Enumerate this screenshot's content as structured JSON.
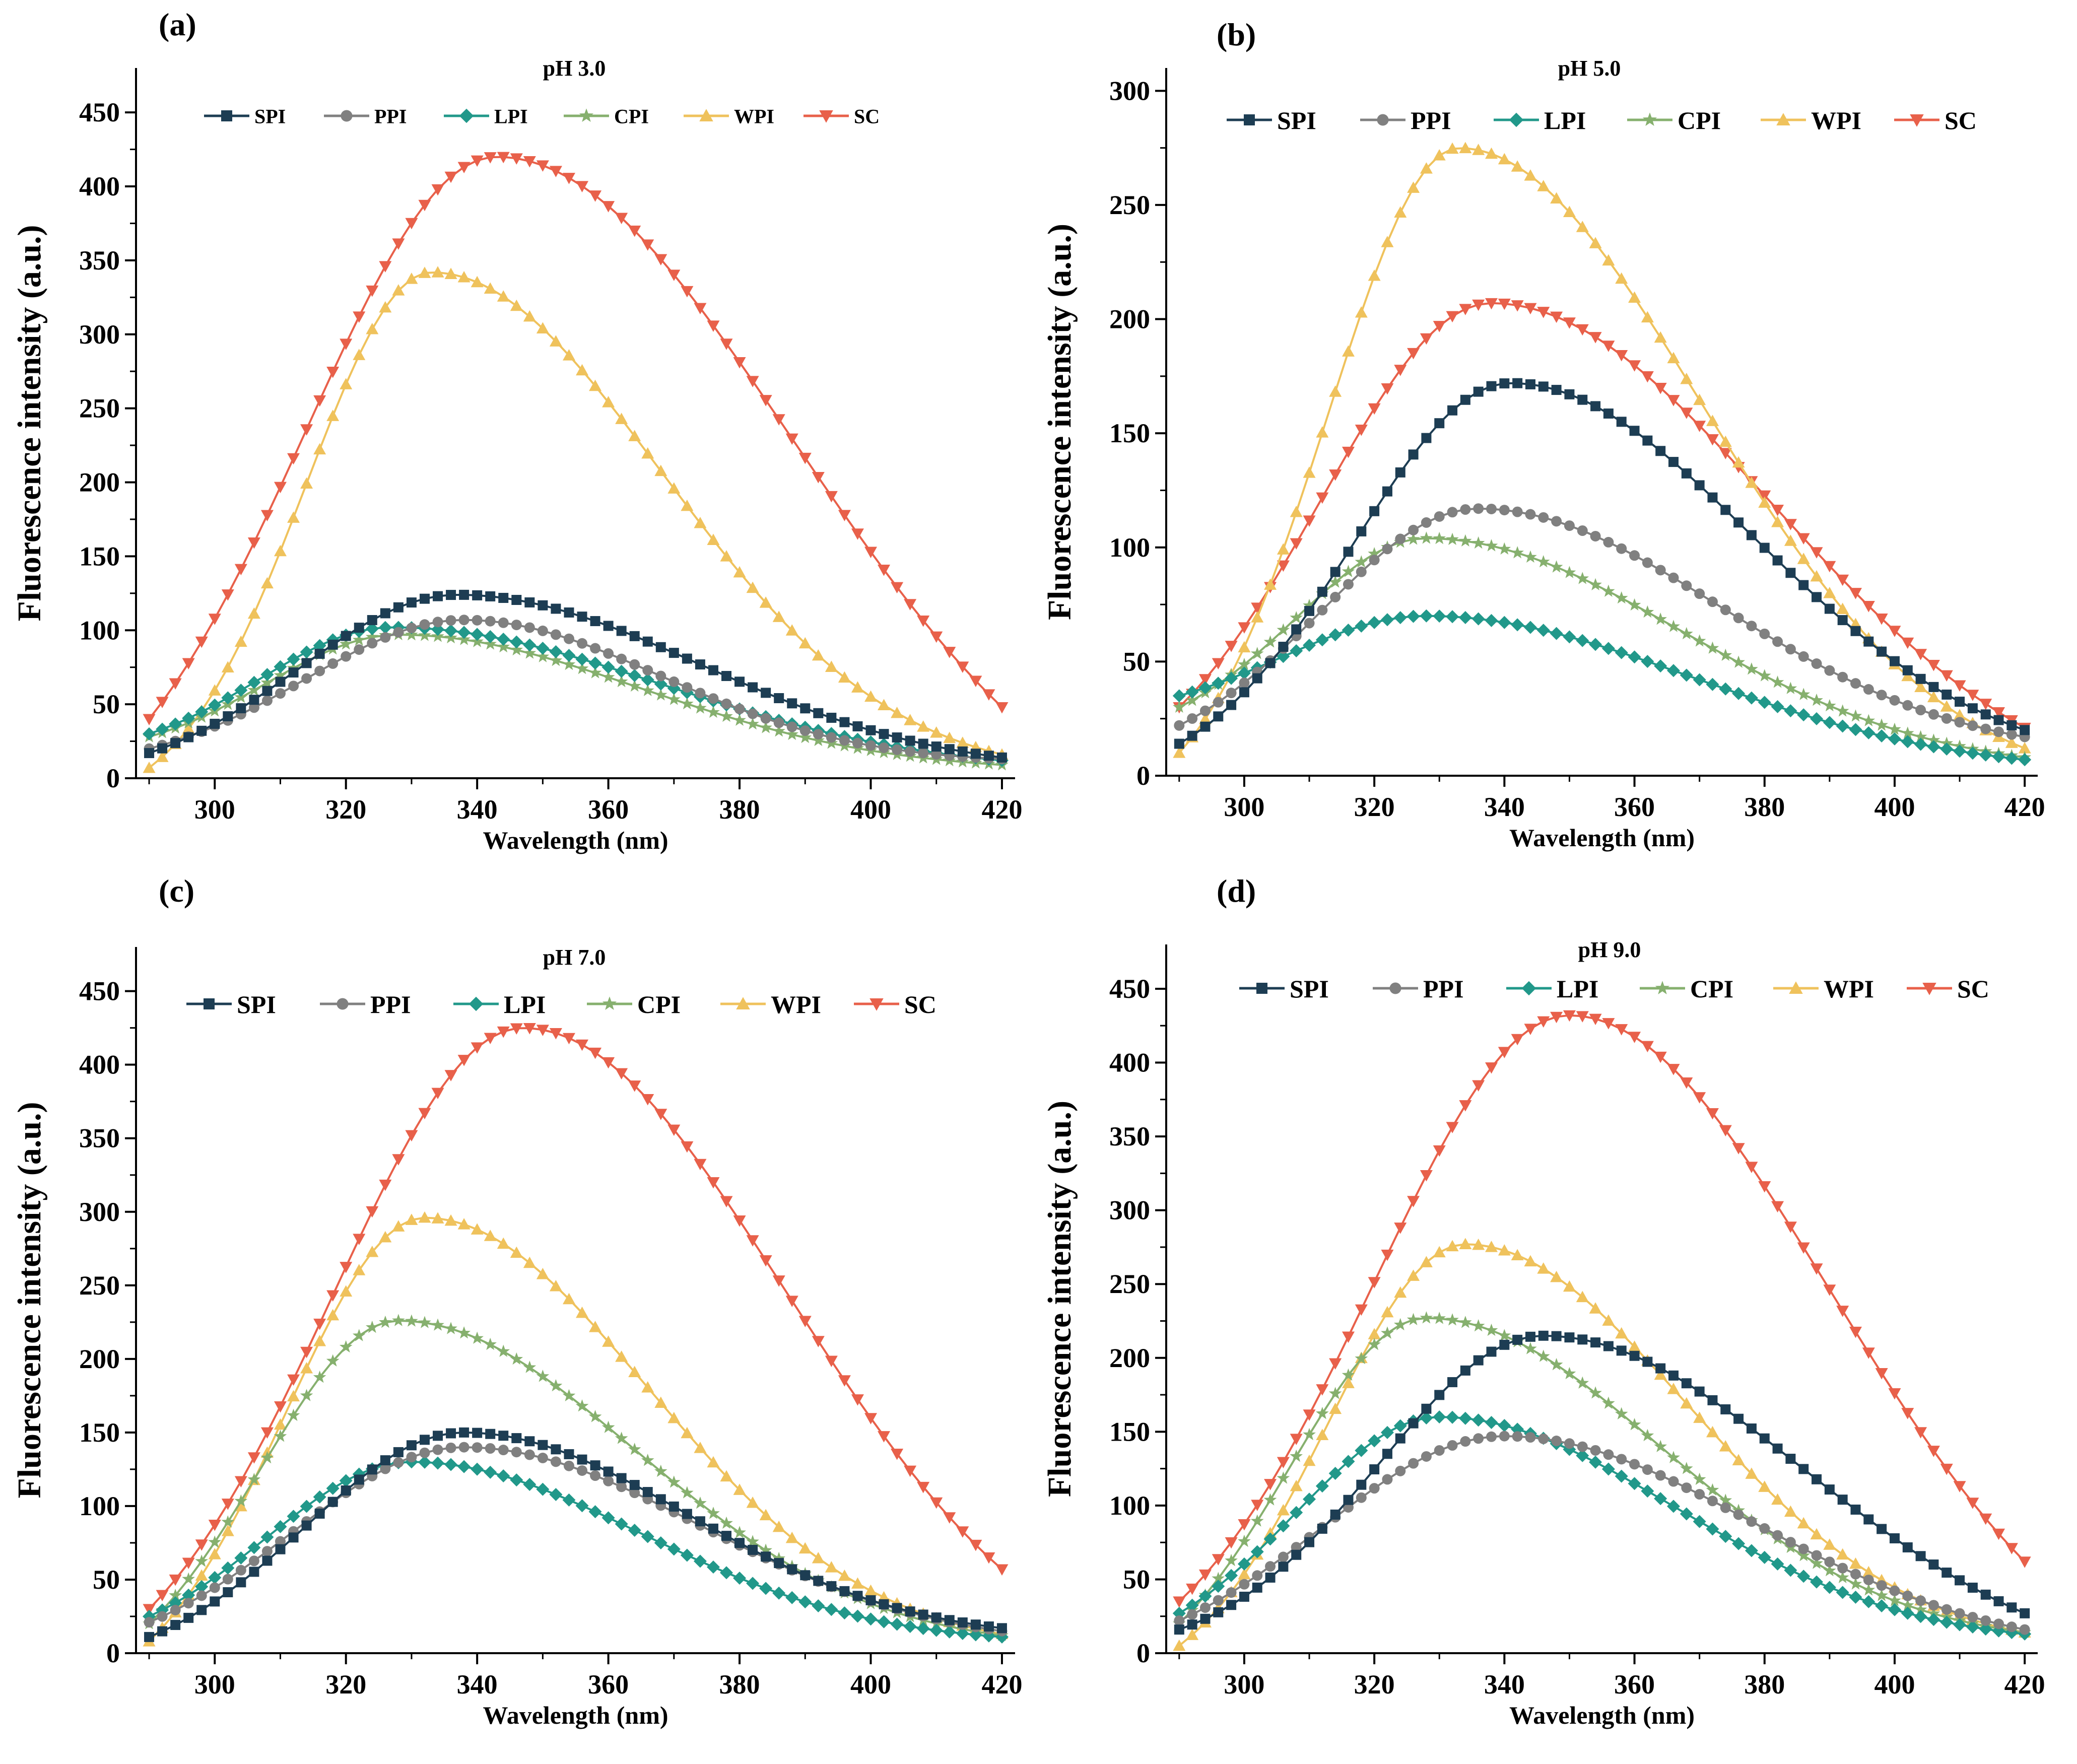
{
  "figure": {
    "x_grid": [
      290,
      292,
      294,
      296,
      298,
      300,
      302,
      304,
      306,
      308,
      310,
      312,
      314,
      316,
      318,
      320,
      322,
      324,
      326,
      328,
      330,
      332,
      334,
      336,
      338,
      340,
      342,
      344,
      346,
      348,
      350,
      352,
      354,
      356,
      358,
      360,
      362,
      364,
      366,
      368,
      370,
      372,
      374,
      376,
      378,
      380,
      382,
      384,
      386,
      388,
      390,
      392,
      394,
      396,
      398,
      400,
      402,
      404,
      406,
      408,
      410,
      412,
      414,
      416,
      418,
      420
    ],
    "colors": {
      "SPI": "#1d3d53",
      "PPI": "#808080",
      "LPI": "#21988a",
      "CPI": "#86b06e",
      "WPI": "#efc25c",
      "SC": "#e8604a"
    },
    "markers": {
      "SPI": "square",
      "PPI": "circle",
      "LPI": "diamond",
      "CPI": "star",
      "WPI": "triangle-up",
      "SC": "triangle-down"
    }
  },
  "chart_data": [
    {
      "type": "line",
      "panel_label": "(a)",
      "title": "pH 3.0",
      "xlabel": "Wavelength (nm)",
      "ylabel": "Fluorescence intensity (a.u.)",
      "xlim": [
        288,
        422
      ],
      "ylim": [
        0,
        480
      ],
      "xticks": [
        300,
        320,
        340,
        360,
        380,
        400,
        420
      ],
      "yticks": [
        0,
        50,
        100,
        150,
        200,
        250,
        300,
        350,
        400,
        450
      ],
      "legend": [
        "SPI",
        "PPI",
        "LPI",
        "CPI",
        "WPI",
        "SC"
      ],
      "series": [
        {
          "name": "SPI",
          "peak_x": 337,
          "peak_y": 124,
          "left_width": 24,
          "right_width": 37,
          "start_y": 17,
          "end_y": 14
        },
        {
          "name": "PPI",
          "peak_x": 338,
          "peak_y": 107,
          "left_width": 24,
          "right_width": 30,
          "start_y": 20,
          "end_y": 13
        },
        {
          "name": "LPI",
          "peak_x": 327,
          "peak_y": 102,
          "left_width": 20,
          "right_width": 41,
          "start_y": 30,
          "end_y": 12
        },
        {
          "name": "CPI",
          "peak_x": 328,
          "peak_y": 97,
          "left_width": 20,
          "right_width": 37,
          "start_y": 28,
          "end_y": 9
        },
        {
          "name": "WPI",
          "peak_x": 333,
          "peak_y": 342,
          "left_width": 19,
          "right_width": 35,
          "start_y": 7,
          "end_y": 16
        },
        {
          "name": "SC",
          "peak_x": 343,
          "peak_y": 420,
          "left_width": 29,
          "right_width": 45,
          "start_y": 40,
          "end_y": 48
        }
      ]
    },
    {
      "type": "line",
      "panel_label": "(b)",
      "title": "pH 5.0",
      "xlabel": "Wavelength (nm)",
      "ylabel": "Fluorescence intensity (a.u.)",
      "xlim": [
        288,
        422
      ],
      "ylim": [
        0,
        310
      ],
      "xticks": [
        300,
        320,
        340,
        360,
        380,
        400,
        420
      ],
      "yticks": [
        0,
        50,
        100,
        150,
        200,
        250,
        300
      ],
      "legend": [
        "SPI",
        "PPI",
        "LPI",
        "CPI",
        "WPI",
        "SC"
      ],
      "series": [
        {
          "name": "SPI",
          "peak_x": 341,
          "peak_y": 172,
          "left_width": 24,
          "right_width": 37,
          "start_y": 14,
          "end_y": 20
        },
        {
          "name": "PPI",
          "peak_x": 336,
          "peak_y": 117,
          "left_width": 24,
          "right_width": 37,
          "start_y": 22,
          "end_y": 17
        },
        {
          "name": "LPI",
          "peak_x": 328,
          "peak_y": 70,
          "left_width": 22,
          "right_width": 41,
          "start_y": 35,
          "end_y": 7
        },
        {
          "name": "CPI",
          "peak_x": 328,
          "peak_y": 104,
          "left_width": 20,
          "right_width": 39,
          "start_y": 30,
          "end_y": 8
        },
        {
          "name": "WPI",
          "peak_x": 333,
          "peak_y": 275,
          "left_width": 20,
          "right_width": 37,
          "start_y": 10,
          "end_y": 12
        },
        {
          "name": "SC",
          "peak_x": 338,
          "peak_y": 207,
          "left_width": 26,
          "right_width": 43,
          "start_y": 30,
          "end_y": 21
        }
      ]
    },
    {
      "type": "line",
      "panel_label": "(c)",
      "title": "pH 7.0",
      "xlabel": "Wavelength (nm)",
      "ylabel": "Fluorescence intensity (a.u.)",
      "xlim": [
        288,
        422
      ],
      "ylim": [
        0,
        480
      ],
      "xticks": [
        300,
        320,
        340,
        360,
        380,
        400,
        420
      ],
      "yticks": [
        0,
        50,
        100,
        150,
        200,
        250,
        300,
        350,
        400,
        450
      ],
      "legend": [
        "SPI",
        "PPI",
        "LPI",
        "CPI",
        "WPI",
        "SC"
      ],
      "series": [
        {
          "name": "SPI",
          "peak_x": 338,
          "peak_y": 150,
          "left_width": 24,
          "right_width": 34,
          "start_y": 11,
          "end_y": 17
        },
        {
          "name": "PPI",
          "peak_x": 338,
          "peak_y": 140,
          "left_width": 26,
          "right_width": 36,
          "start_y": 21,
          "end_y": 15
        },
        {
          "name": "LPI",
          "peak_x": 330,
          "peak_y": 130,
          "left_width": 22,
          "right_width": 35,
          "start_y": 25,
          "end_y": 11
        },
        {
          "name": "CPI",
          "peak_x": 328,
          "peak_y": 226,
          "left_width": 21,
          "right_width": 36,
          "start_y": 20,
          "end_y": 12
        },
        {
          "name": "WPI",
          "peak_x": 332,
          "peak_y": 296,
          "left_width": 21,
          "right_width": 34,
          "start_y": 8,
          "end_y": 13
        },
        {
          "name": "SC",
          "peak_x": 347,
          "peak_y": 425,
          "left_width": 29,
          "right_width": 40,
          "start_y": 30,
          "end_y": 57
        }
      ]
    },
    {
      "type": "line",
      "panel_label": "(d)",
      "title": "pH 9.0",
      "xlabel": "Wavelength (nm)",
      "ylabel": "Fluorescence intensity (a.u.)",
      "xlim": [
        288,
        422
      ],
      "ylim": [
        0,
        480
      ],
      "xticks": [
        300,
        320,
        340,
        360,
        380,
        400,
        420
      ],
      "yticks": [
        0,
        50,
        100,
        150,
        200,
        250,
        300,
        350,
        400,
        450
      ],
      "legend": [
        "SPI",
        "PPI",
        "LPI",
        "CPI",
        "WPI",
        "SC"
      ],
      "series": [
        {
          "name": "SPI",
          "peak_x": 346,
          "peak_y": 215,
          "left_width": 25,
          "right_width": 40,
          "start_y": 16,
          "end_y": 27
        },
        {
          "name": "PPI",
          "peak_x": 340,
          "peak_y": 147,
          "left_width": 28,
          "right_width": 38,
          "start_y": 22,
          "end_y": 16
        },
        {
          "name": "LPI",
          "peak_x": 330,
          "peak_y": 160,
          "left_width": 22,
          "right_width": 36,
          "start_y": 27,
          "end_y": 13
        },
        {
          "name": "CPI",
          "peak_x": 328,
          "peak_y": 227,
          "left_width": 21,
          "right_width": 36,
          "start_y": 20,
          "end_y": 14
        },
        {
          "name": "WPI",
          "peak_x": 334,
          "peak_y": 277,
          "left_width": 21,
          "right_width": 34,
          "start_y": 5,
          "end_y": 14
        },
        {
          "name": "SC",
          "peak_x": 350,
          "peak_y": 432,
          "left_width": 30,
          "right_width": 40,
          "start_y": 35,
          "end_y": 62
        }
      ]
    }
  ]
}
